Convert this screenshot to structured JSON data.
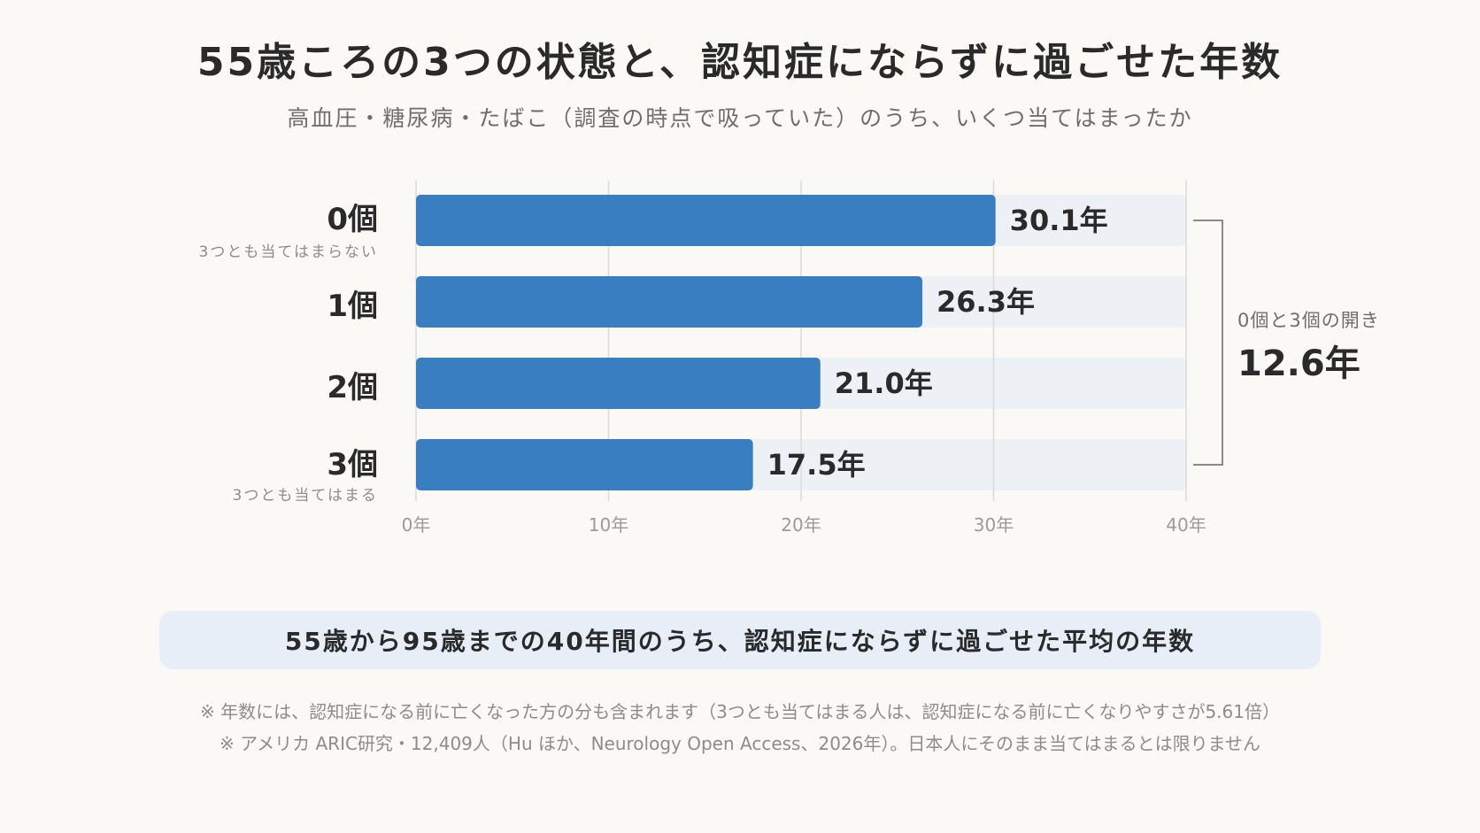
{
  "header": {
    "title": "55歳ころの3つの状態と、認知症にならずに過ごせた年数",
    "subtitle": "高血圧・糖尿病・たばこ（調査の時点で吸っていた）のうち、いくつ当てはまったか"
  },
  "rows": [
    {
      "label": "0個",
      "sub": "3つとも当てはまらない"
    },
    {
      "label": "1個",
      "sub": ""
    },
    {
      "label": "2個",
      "sub": ""
    },
    {
      "label": "3個",
      "sub": "3つとも当てはまる"
    }
  ],
  "chart_data": {
    "type": "bar",
    "orientation": "horizontal",
    "categories": [
      "0個",
      "1個",
      "2個",
      "3個"
    ],
    "values": [
      30.1,
      26.3,
      21.0,
      17.5
    ],
    "value_labels": [
      "30.1年",
      "26.3年",
      "21.0年",
      "17.5年"
    ],
    "xlim": [
      0,
      40
    ],
    "x_ticks": [
      0,
      10,
      20,
      30,
      40
    ],
    "x_tick_labels": [
      "0年",
      "10年",
      "20年",
      "30年",
      "40年"
    ],
    "grid": true,
    "bar_color": "#3a7ec2",
    "track_color": "#edf1f5",
    "annotation": {
      "label": "0個と3個の開き",
      "value": "12.6年",
      "spans": [
        "0個",
        "3個"
      ]
    }
  },
  "caption": "55歳から95歳までの40年間のうち、認知症にならずに過ごせた平均の年数",
  "notes": [
    "※ 年数には、認知症になる前に亡くなった方の分も含まれます（3つとも当てはまる人は、認知症になる前に亡くなりやすさが5.61倍）",
    "※ アメリカ ARIC研究・12,409人（Hu ほか、Neurology Open Access、2026年）。日本人にそのまま当てはまるとは限りません"
  ]
}
